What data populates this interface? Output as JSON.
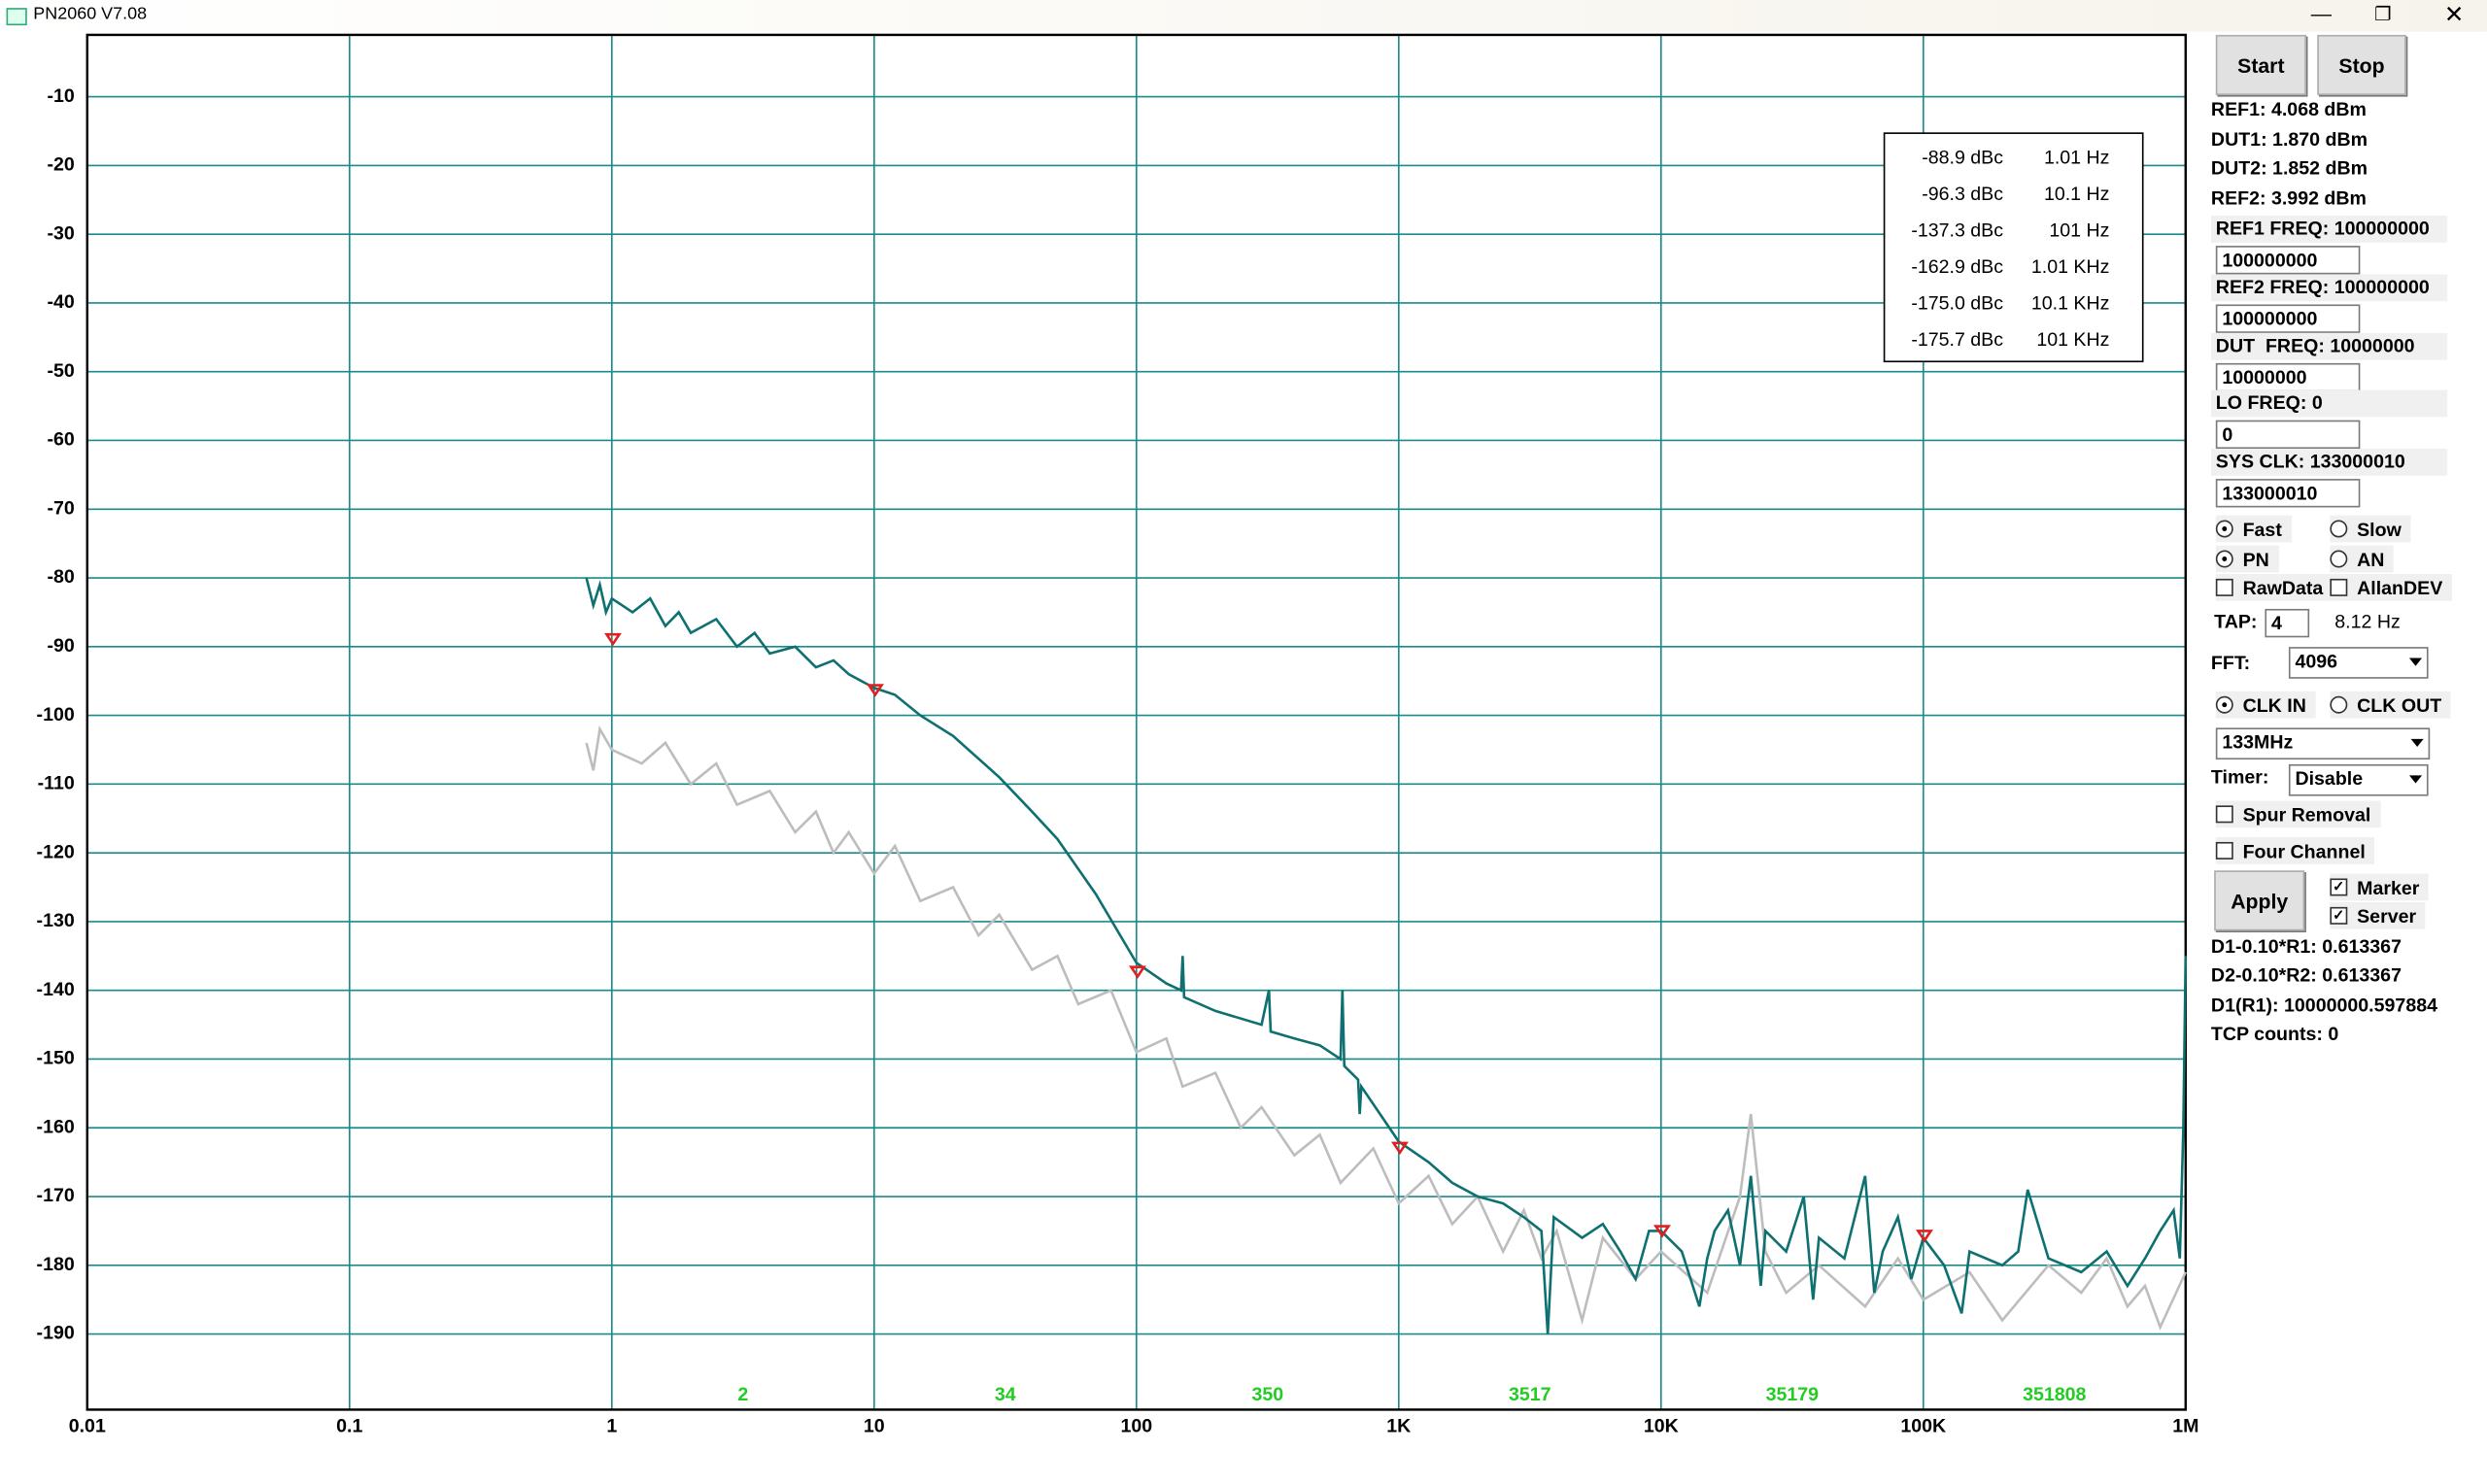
{
  "window": {
    "title": "PN2060 V7.08"
  },
  "chart_data": {
    "type": "line",
    "log_x": true,
    "grid": true,
    "xlim": [
      0.01,
      1000000
    ],
    "ylim": [
      -201,
      -1
    ],
    "xticks": [
      0.01,
      0.1,
      1,
      10,
      100,
      {
        "value": 1000,
        "label": "1K"
      },
      {
        "value": 10000,
        "label": "10K"
      },
      {
        "value": 100000,
        "label": "100K"
      },
      {
        "value": 1000000,
        "label": "1M"
      }
    ],
    "yticks": [
      -10,
      -20,
      -30,
      -40,
      -50,
      -60,
      -70,
      -80,
      -90,
      -100,
      -110,
      -120,
      -130,
      -140,
      -150,
      -160,
      -170,
      -180,
      -190
    ],
    "series": [
      {
        "color": "#bdbdbd",
        "x": [
          0.8,
          0.85,
          0.9,
          1,
          1.3,
          1.6,
          2,
          2.5,
          3,
          4,
          5,
          6,
          7,
          8,
          10,
          12,
          15,
          20,
          25,
          30,
          40,
          50,
          60,
          80,
          100,
          130,
          150,
          200,
          250,
          300,
          400,
          500,
          600,
          800,
          1000,
          1300,
          1600,
          2000,
          2500,
          3000,
          3500,
          4000,
          5000,
          6000,
          8000,
          10000,
          15000,
          20000,
          22000,
          25000,
          30000,
          40000,
          60000,
          80000,
          100000,
          150000,
          200000,
          300000,
          400000,
          500000,
          600000,
          700000,
          800000,
          1000000
        ],
        "values": [
          -104,
          -108,
          -102,
          -105,
          -107,
          -104,
          -110,
          -107,
          -113,
          -111,
          -117,
          -114,
          -120,
          -117,
          -123,
          -119,
          -127,
          -125,
          -132,
          -129,
          -137,
          -135,
          -142,
          -140,
          -149,
          -147,
          -154,
          -152,
          -160,
          -157,
          -164,
          -161,
          -168,
          -163,
          -171,
          -167,
          -174,
          -170,
          -178,
          -172,
          -179,
          -175,
          -188,
          -176,
          -182,
          -178,
          -184,
          -170,
          -158,
          -178,
          -184,
          -180,
          -186,
          -179,
          -185,
          -181,
          -188,
          -180,
          -184,
          -179,
          -186,
          -183,
          -189,
          -181
        ]
      },
      {
        "color": "#0e7070",
        "x": [
          0.8,
          0.85,
          0.9,
          0.95,
          1,
          1.2,
          1.4,
          1.6,
          1.8,
          2,
          2.5,
          3,
          3.5,
          4,
          5,
          6,
          7,
          8,
          10,
          12,
          15,
          20,
          30,
          40,
          50,
          70,
          100,
          130,
          148,
          150,
          152,
          200,
          300,
          320,
          325,
          400,
          500,
          600,
          610,
          620,
          700,
          710,
          720,
          1000,
          1300,
          1600,
          2000,
          2500,
          3000,
          3500,
          3700,
          3900,
          5000,
          6000,
          7000,
          8000,
          9000,
          10000,
          12000,
          14000,
          15000,
          16000,
          18000,
          20000,
          22000,
          24000,
          25000,
          30000,
          35000,
          38000,
          40000,
          50000,
          60000,
          65000,
          70000,
          80000,
          90000,
          100000,
          120000,
          140000,
          150000,
          200000,
          230000,
          250000,
          300000,
          400000,
          500000,
          600000,
          700000,
          800000,
          900000,
          950000,
          980000,
          1000000
        ],
        "values": [
          -80,
          -84,
          -81,
          -85,
          -83,
          -85,
          -83,
          -87,
          -85,
          -88,
          -86,
          -90,
          -88,
          -91,
          -90,
          -93,
          -92,
          -94,
          -96,
          -97,
          -100,
          -103,
          -109,
          -114,
          -118,
          -126,
          -136,
          -139,
          -140,
          -135,
          -141,
          -143,
          -145,
          -140,
          -146,
          -147,
          -148,
          -150,
          -140,
          -151,
          -153,
          -158,
          -154,
          -162,
          -165,
          -168,
          -170,
          -171,
          -173,
          -175,
          -190,
          -173,
          -176,
          -174,
          -178,
          -182,
          -175,
          -175,
          -178,
          -186,
          -179,
          -175,
          -172,
          -180,
          -167,
          -183,
          -175,
          -178,
          -170,
          -185,
          -176,
          -179,
          -167,
          -184,
          -178,
          -173,
          -182,
          -176,
          -180,
          -187,
          -178,
          -180,
          -178,
          -169,
          -179,
          -181,
          -178,
          -183,
          -179,
          -175,
          -172,
          -179,
          -160,
          -135
        ]
      }
    ],
    "markers": {
      "color": "#e02020",
      "x": [
        1.01,
        10.1,
        101,
        1010,
        10100,
        101000
      ],
      "values": [
        -88.9,
        -96.3,
        -137.3,
        -162.9,
        -175.0,
        -175.7
      ],
      "value_labels": [
        "-88.9 dBc",
        "-96.3 dBc",
        "-137.3 dBc",
        "-162.9 dBc",
        "-175.0 dBc",
        "-175.7 dBc"
      ],
      "x_labels": [
        "1.01 Hz",
        "10.1 Hz",
        "101 Hz",
        "1.01 KHz",
        "10.1 KHz",
        "101 KHz"
      ]
    },
    "decade_counts": {
      "color": "#22cc22",
      "labels": [
        "2",
        "34",
        "350",
        "3517",
        "35179",
        "351808"
      ]
    }
  },
  "panel": {
    "start": "Start",
    "stop": "Stop",
    "apply": "Apply",
    "levels": [
      "REF1: 4.068 dBm",
      "DUT1: 1.870 dBm",
      "DUT2: 1.852 dBm",
      "REF2: 3.992 dBm"
    ],
    "fields": [
      {
        "label": "REF1 FREQ: 100000000",
        "input": "100000000"
      },
      {
        "label": "REF2 FREQ: 100000000",
        "input": "100000000"
      },
      {
        "label": "DUT  FREQ: 10000000",
        "input": "10000000"
      },
      {
        "label": "LO FREQ: 0",
        "input": "0"
      },
      {
        "label": "SYS CLK: 133000010",
        "input": "133000010"
      }
    ],
    "options": [
      {
        "label": "Fast",
        "kind": "radio",
        "checked": true
      },
      {
        "label": "Slow",
        "kind": "radio",
        "checked": false
      },
      {
        "label": "PN",
        "kind": "radio",
        "checked": true
      },
      {
        "label": "AN",
        "kind": "radio",
        "checked": false
      },
      {
        "label": "RawData",
        "kind": "checkbox",
        "checked": false
      },
      {
        "label": "AllanDEV",
        "kind": "checkbox",
        "checked": false
      },
      {
        "label": "CLK IN",
        "kind": "radio",
        "checked": true
      },
      {
        "label": "CLK OUT",
        "kind": "radio",
        "checked": false
      },
      {
        "label": "Spur Removal",
        "kind": "checkbox",
        "checked": false
      },
      {
        "label": "Four Channel",
        "kind": "checkbox",
        "checked": false
      },
      {
        "label": "Marker",
        "kind": "checkbox",
        "checked": true
      },
      {
        "label": "Server",
        "kind": "checkbox",
        "checked": true
      }
    ],
    "tap_label": "TAP:",
    "tap": "4",
    "tap_freq": "8.12 Hz",
    "fft_label": "FFT:",
    "fft": "4096",
    "clock": "133MHz",
    "timer_label": "Timer:",
    "timer": "Disable",
    "results": [
      "D1-0.10*R1: 0.613367",
      "D2-0.10*R2: 0.613367",
      "D1(R1): 10000000.597884",
      "TCP counts: 0"
    ]
  }
}
